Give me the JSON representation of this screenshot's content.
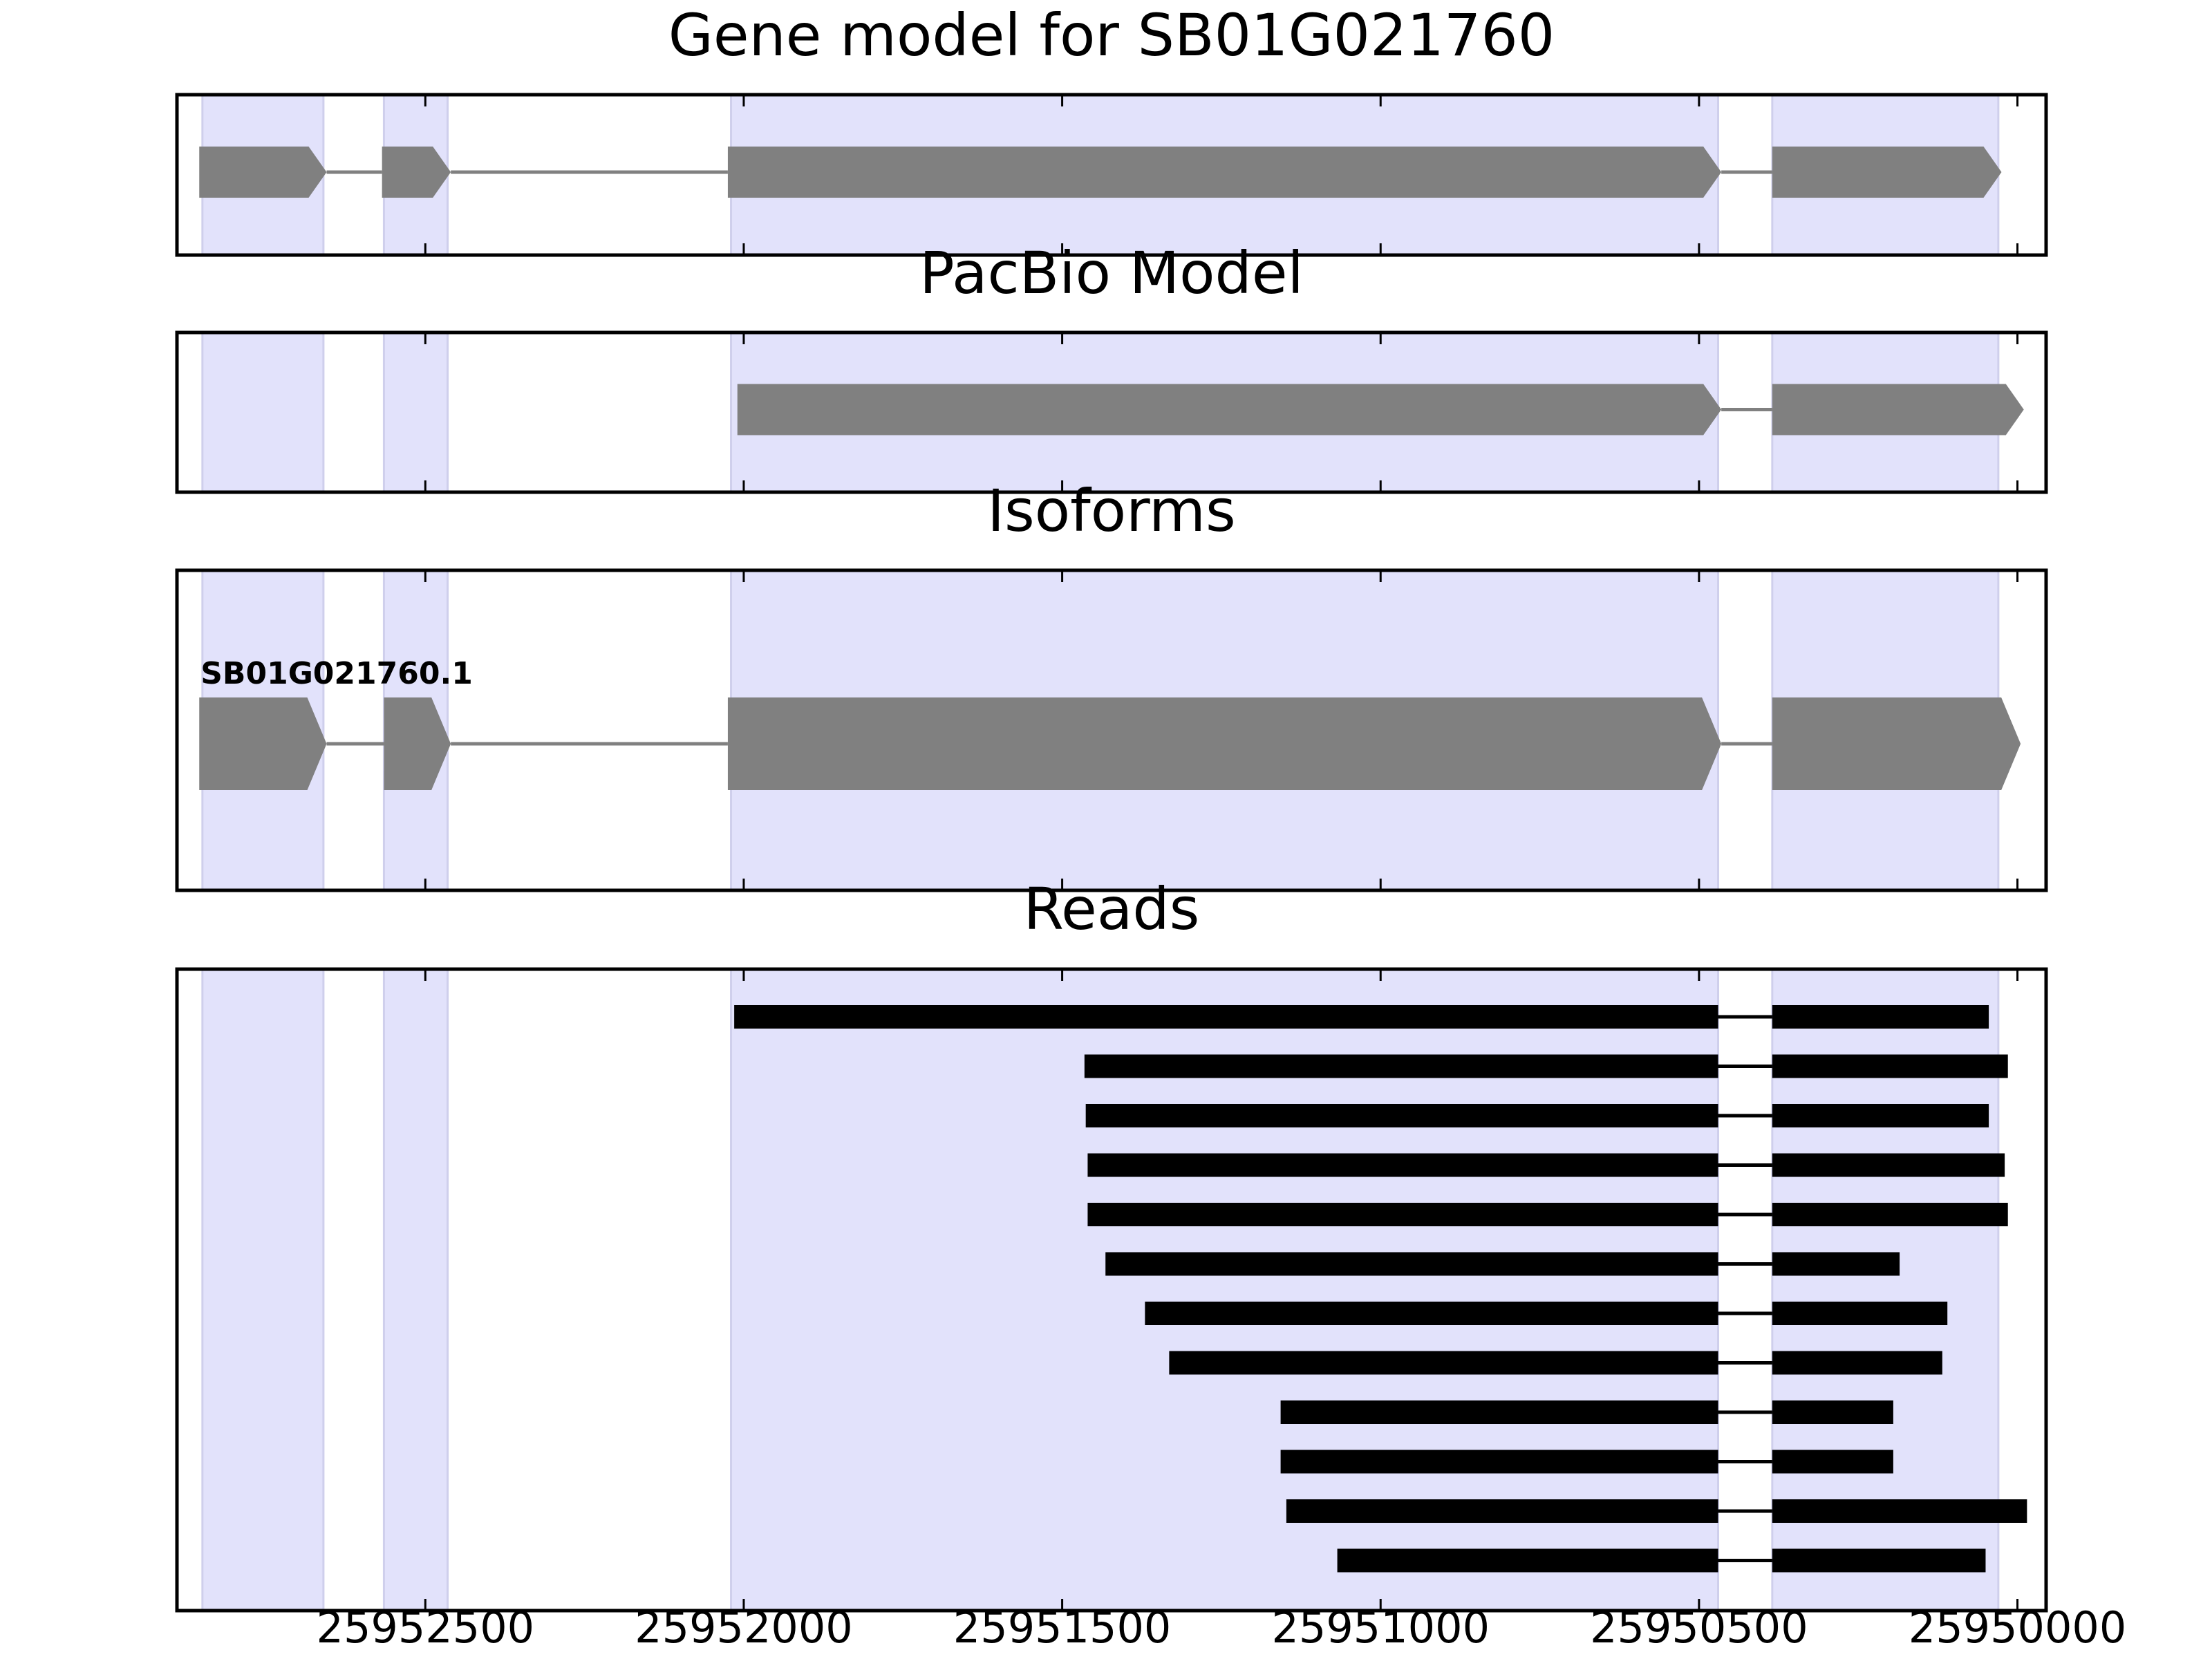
{
  "chart_data": {
    "type": "gene-structure",
    "x_axis": {
      "reversed": true,
      "xlim": [
        25952890,
        25949955
      ],
      "ticks": [
        25952500,
        25952000,
        25951500,
        25951000,
        25950500,
        25950000
      ],
      "tick_labels": [
        "25952500",
        "25952000",
        "25951500",
        "25951000",
        "25950500",
        "25950000"
      ]
    },
    "shaded_exon_regions": [
      [
        25952850,
        25952660
      ],
      [
        25952565,
        25952465
      ],
      [
        25952020,
        25950470
      ],
      [
        25950385,
        25950030
      ]
    ],
    "panels": [
      {
        "title": "Gene model for SB01G021760",
        "kind": "gene_model",
        "strand": "-",
        "exons": [
          [
            25952855,
            25952655
          ],
          [
            25952568,
            25952460
          ],
          [
            25952025,
            25950465
          ],
          [
            25950385,
            25950025
          ]
        ]
      },
      {
        "title": "PacBio Model",
        "kind": "gene_model",
        "strand": "-",
        "exons": [
          [
            25952010,
            25950465
          ],
          [
            25950385,
            25949990
          ]
        ]
      },
      {
        "title": "Isoforms",
        "kind": "isoforms",
        "isoforms": [
          {
            "name": "SB01G021760.1",
            "strand": "-",
            "exons": [
              [
                25952855,
                25952655
              ],
              [
                25952565,
                25952460
              ],
              [
                25952025,
                25950465
              ],
              [
                25950385,
                25949995
              ]
            ]
          }
        ]
      },
      {
        "title": "Reads",
        "kind": "reads",
        "intron": [
          25950470,
          25950385
        ],
        "reads": [
          [
            25952015,
            25950045
          ],
          [
            25951465,
            25950015
          ],
          [
            25951463,
            25950045
          ],
          [
            25951460,
            25950020
          ],
          [
            25951460,
            25950015
          ],
          [
            25951432,
            25950185
          ],
          [
            25951370,
            25950110
          ],
          [
            25951332,
            25950118
          ],
          [
            25951157,
            25950195
          ],
          [
            25951157,
            25950195
          ],
          [
            25951148,
            25949985
          ],
          [
            25951068,
            25950050
          ]
        ]
      }
    ],
    "colors": {
      "shade": "#e2e2fb",
      "shade_edge": "#cfcfec",
      "exon": "#808080",
      "intron": "#808080",
      "read": "#000000",
      "frame": "#000000"
    }
  }
}
